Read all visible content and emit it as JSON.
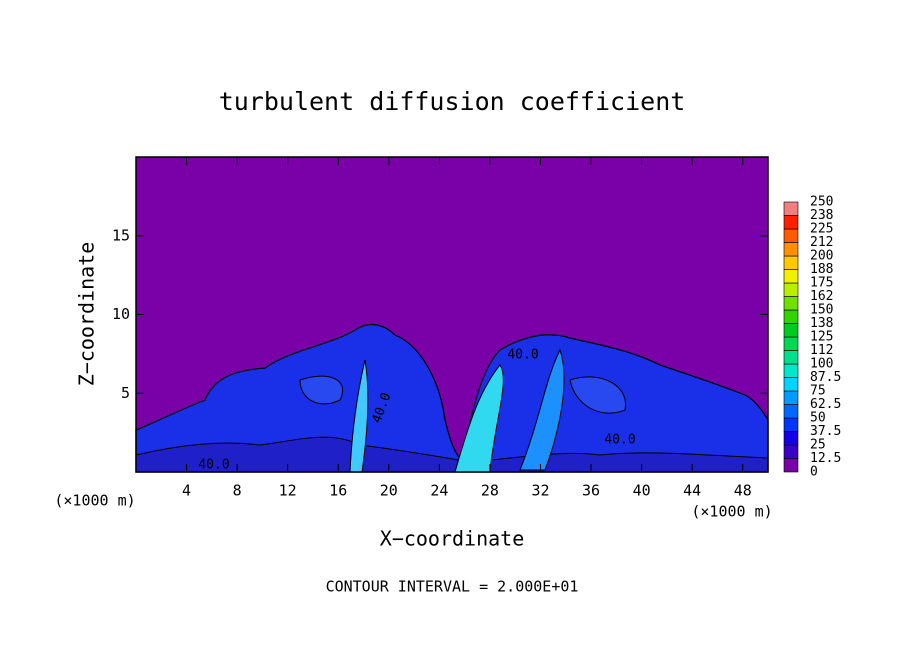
{
  "chart_data": {
    "type": "contour",
    "title": "turbulent diffusion coefficient",
    "x_label": "X−coordinate",
    "y_label": "Z−coordinate",
    "x_unit": "(×1000 m)",
    "y_unit": "(×1000 m)",
    "footnote": "CONTOUR INTERVAL = 2.000E+01",
    "xlim": [
      0,
      50
    ],
    "ylim": [
      0,
      20
    ],
    "xticks": [
      4,
      8,
      12,
      16,
      20,
      24,
      28,
      32,
      36,
      40,
      44,
      48
    ],
    "yticks": [
      5,
      10,
      15
    ],
    "contour_labels": [
      "40.0",
      "40.0",
      "40.0",
      "40.0"
    ],
    "colorbar": {
      "levels": [
        0,
        12.5,
        25,
        37.5,
        50,
        62.5,
        75,
        87.5,
        100,
        112,
        125,
        138,
        150,
        162,
        175,
        188,
        200,
        212,
        225,
        238,
        250
      ],
      "colors": [
        "#7a00a8",
        "#3a00c8",
        "#1400e6",
        "#0034ff",
        "#0068ff",
        "#009cff",
        "#00d4ff",
        "#00e8c8",
        "#00e08c",
        "#00d850",
        "#00cc20",
        "#30d400",
        "#70e000",
        "#b8f000",
        "#f0f000",
        "#ffc800",
        "#ff9000",
        "#ff5a00",
        "#ff1e00",
        "#f08080"
      ]
    }
  }
}
